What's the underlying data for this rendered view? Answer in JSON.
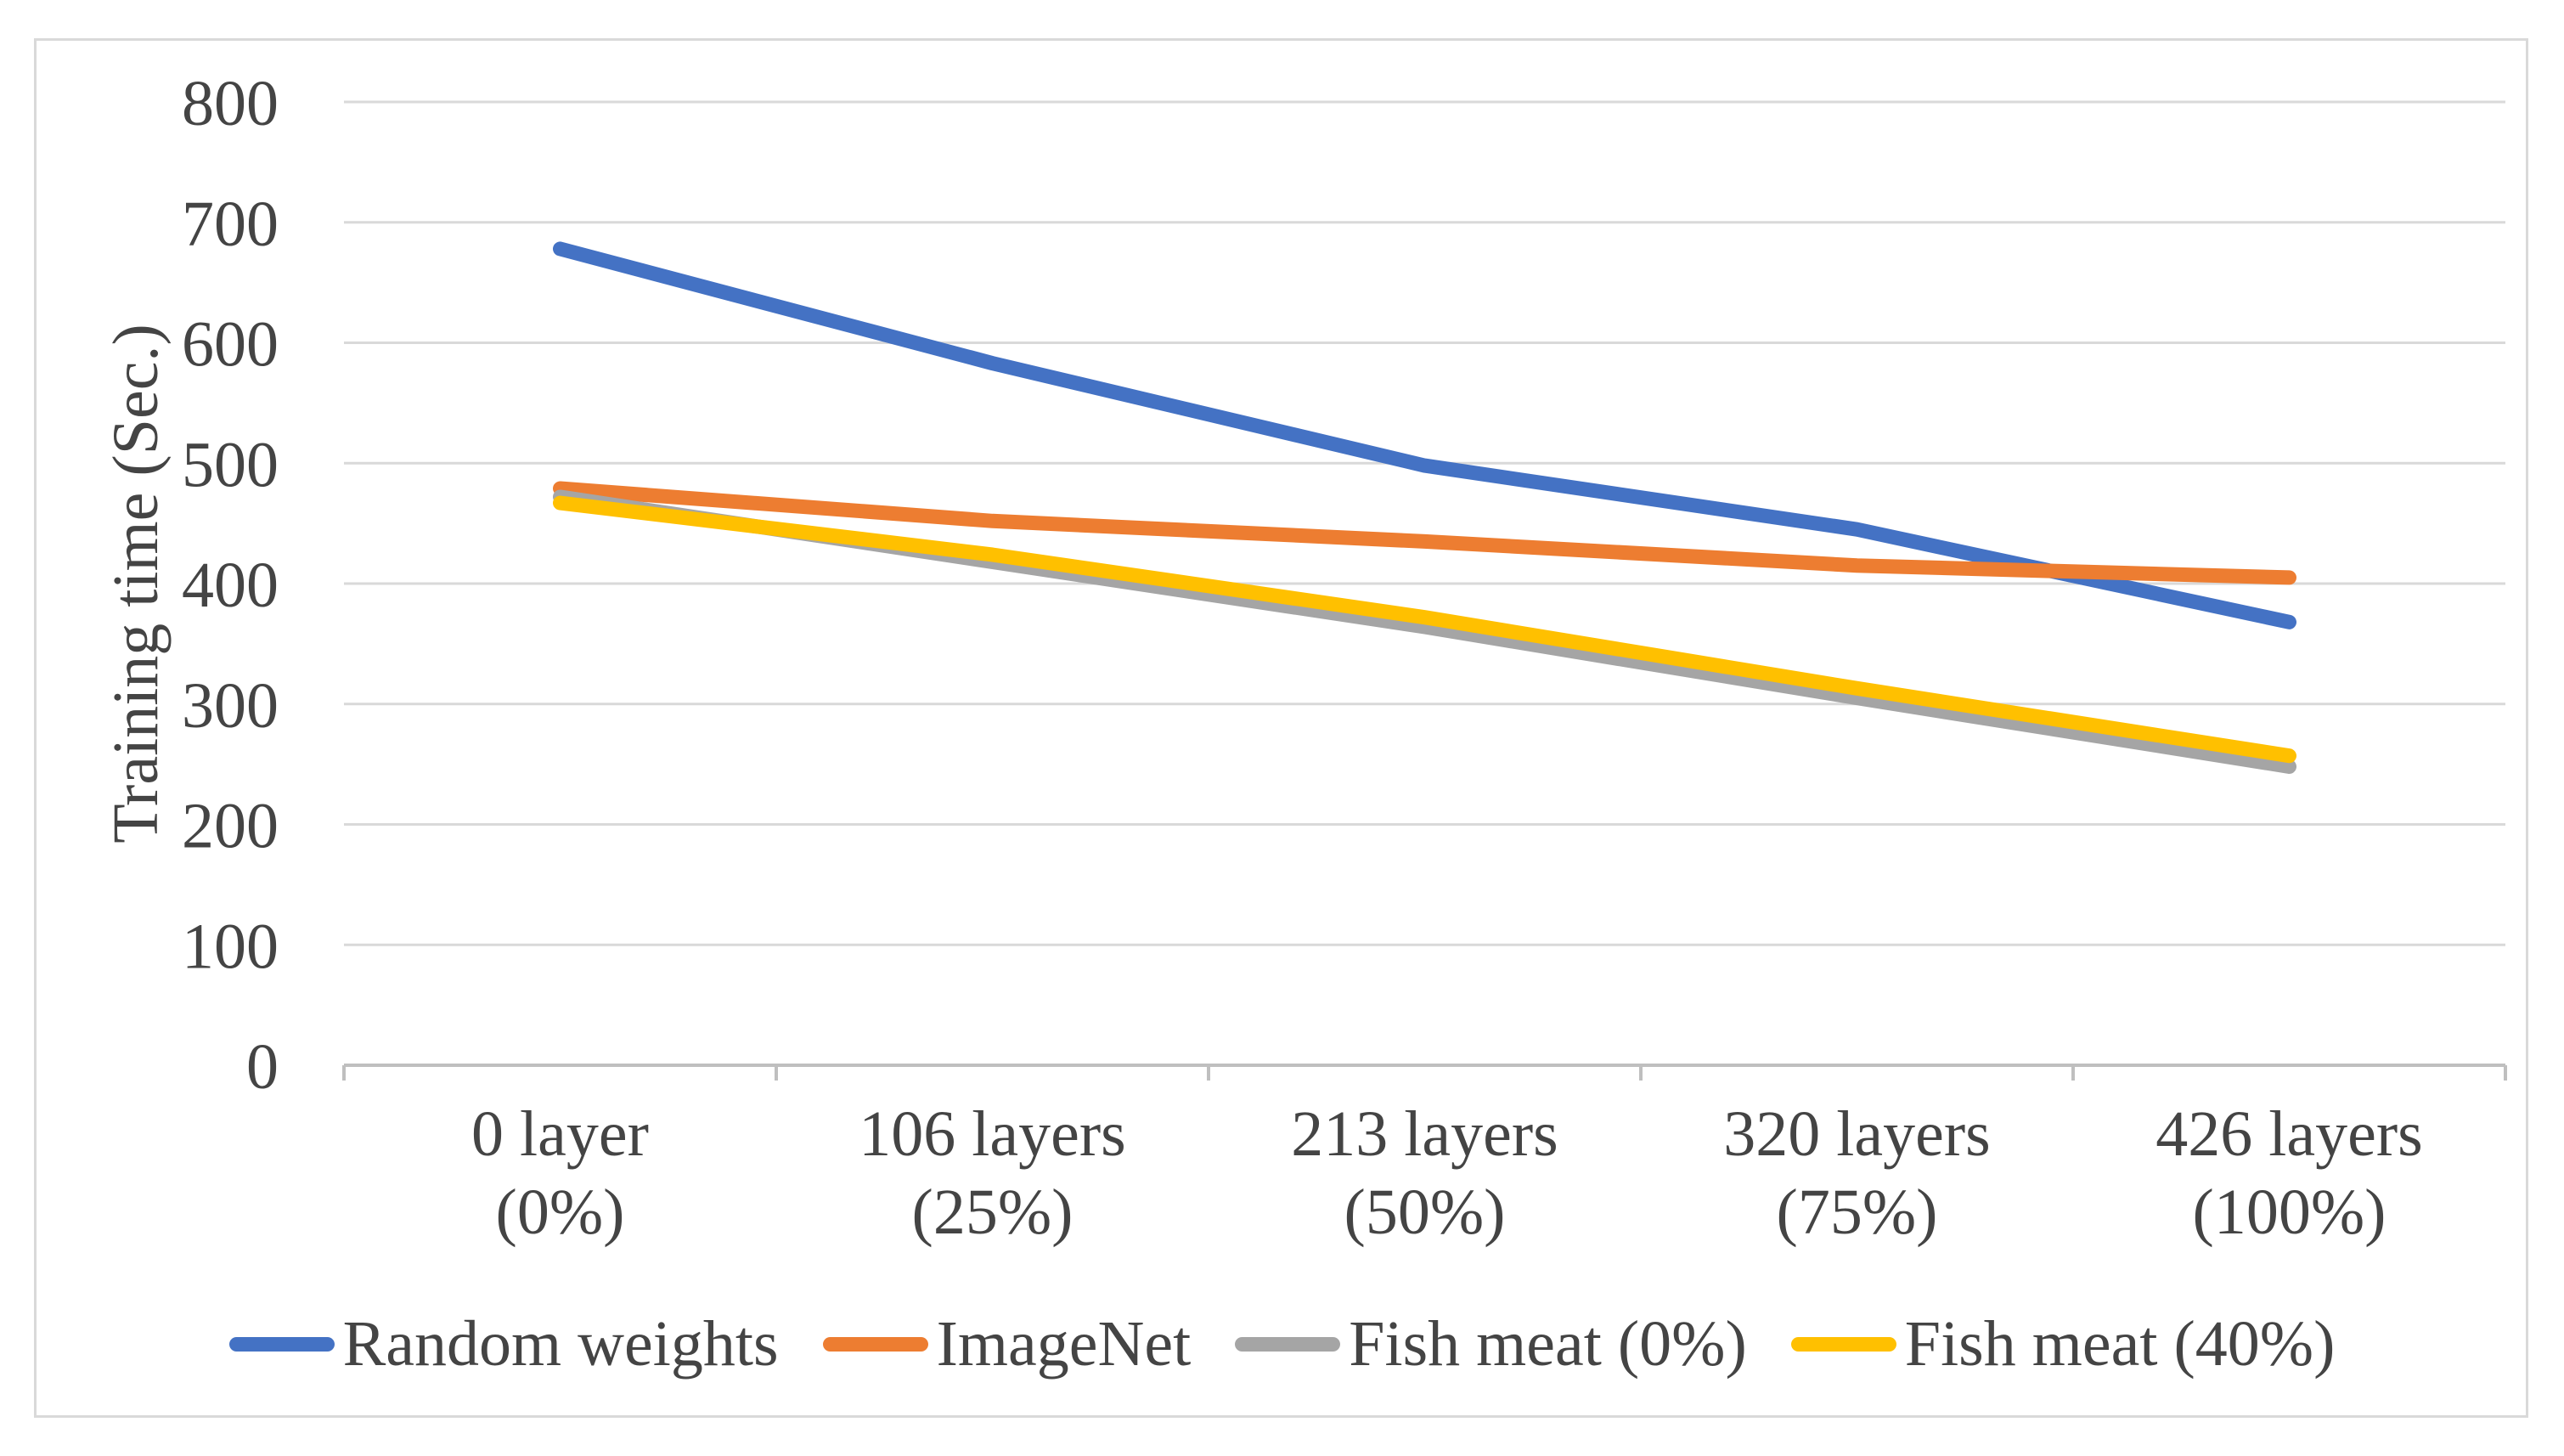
{
  "chart_data": {
    "type": "line",
    "title": "",
    "xlabel": "",
    "ylabel": "Training time (Sec.)",
    "ylim": [
      0,
      800
    ],
    "y_ticks": [
      0,
      100,
      200,
      300,
      400,
      500,
      600,
      700,
      800
    ],
    "grid": "horizontal",
    "legend_position": "bottom",
    "categories": [
      "0 layer",
      "106 layers",
      "213 layers",
      "320 layers",
      "426 layers"
    ],
    "category_sublabels": [
      "(0%)",
      "(25%)",
      "(50%)",
      "(75%)",
      "(100%)"
    ],
    "series": [
      {
        "name": "Random weights",
        "color": "#4472C4",
        "values": [
          678,
          583,
          498,
          445,
          368
        ]
      },
      {
        "name": "ImageNet",
        "color": "#ED7D31",
        "values": [
          479,
          452,
          435,
          415,
          405
        ]
      },
      {
        "name": "Fish meat (0%)",
        "color": "#A5A5A5",
        "values": [
          472,
          418,
          364,
          305,
          248
        ]
      },
      {
        "name": "Fish meat (40%)",
        "color": "#FFC000",
        "values": [
          467,
          424,
          372,
          313,
          257
        ]
      }
    ],
    "colors": {
      "gridline": "#d9d9d9",
      "axis_line": "#bfbfbf",
      "tick_text": "#444444",
      "frame_border": "#d9d9d9",
      "background": "#ffffff"
    }
  }
}
